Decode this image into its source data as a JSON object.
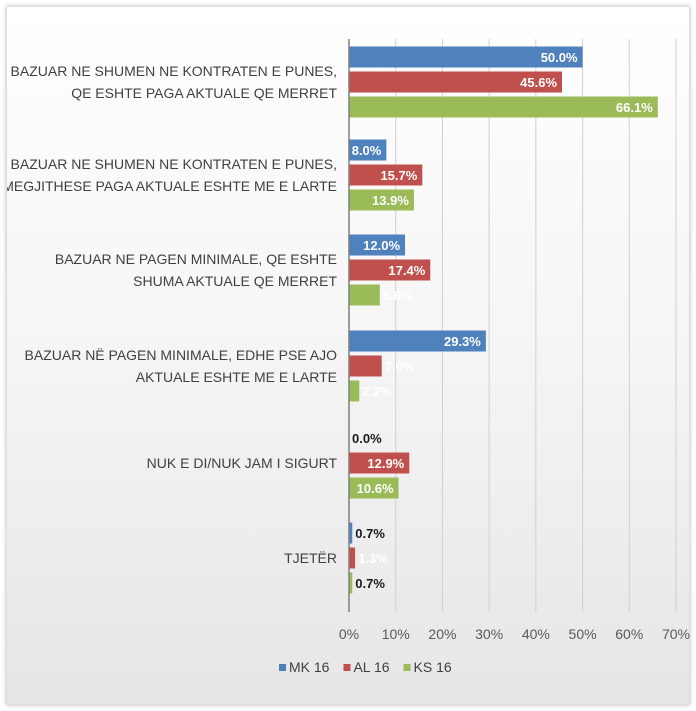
{
  "chart_data": {
    "type": "bar",
    "orientation": "horizontal",
    "categories": [
      [
        "BAZUAR NE SHUMEN NE KONTRATEN E PUNES,",
        "QE ESHTE PAGA AKTUALE QE MERRET"
      ],
      [
        "BAZUAR NE SHUMEN NE KONTRATEN E PUNES,",
        "MEGJITHESE PAGA AKTUALE ESHTE ME E LARTE"
      ],
      [
        "BAZUAR NE PAGEN MINIMALE, QE ESHTE",
        "SHUMA AKTUALE QE MERRET"
      ],
      [
        "BAZUAR NË PAGEN MINIMALE, EDHE PSE AJO",
        "AKTUALE ESHTE ME E LARTE"
      ],
      [
        "NUK E DI/NUK JAM I SIGURT"
      ],
      [
        "TJETËR"
      ]
    ],
    "series": [
      {
        "name": "MK 16",
        "color": "#4f81bd",
        "values": [
          50.0,
          8.0,
          12.0,
          29.3,
          0.0,
          0.7
        ],
        "labels": [
          "50.0%",
          "8.0%",
          "12.0%",
          "29.3%",
          "0.0%",
          "0.7%"
        ]
      },
      {
        "name": "AL 16",
        "color": "#c0504d",
        "values": [
          45.6,
          15.7,
          17.4,
          7.0,
          12.9,
          1.3
        ],
        "labels": [
          "45.6%",
          "15.7%",
          "17.4%",
          "7.0%",
          "12.9%",
          "1.3%"
        ]
      },
      {
        "name": "KS 16",
        "color": "#9bbb59",
        "values": [
          66.1,
          13.9,
          6.6,
          2.2,
          10.6,
          0.7
        ],
        "labels": [
          "66.1%",
          "13.9%",
          "6.6%",
          "2.2%",
          "10.6%",
          "0.7%"
        ]
      }
    ],
    "xlim": [
      0,
      70
    ],
    "x_ticks": [
      "0%",
      "10%",
      "20%",
      "30%",
      "40%",
      "50%",
      "60%",
      "70%"
    ],
    "grid": true,
    "legend": "bottom"
  }
}
